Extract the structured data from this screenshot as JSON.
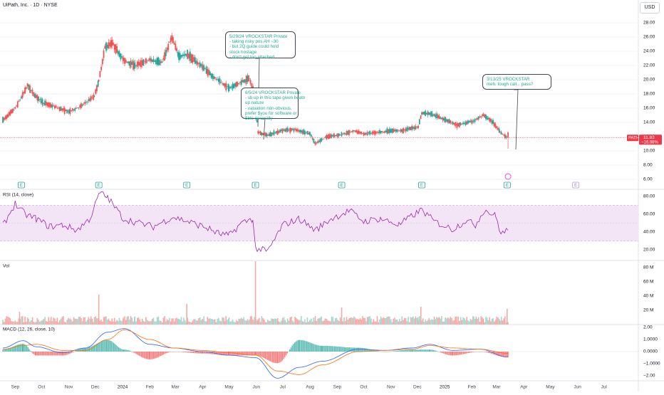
{
  "header": {
    "symbol_title": "UiPath, Inc. · 1D · NYSE",
    "currency": "USD"
  },
  "colors": {
    "up": "#26a69a",
    "down": "#ef5350",
    "rsi_line": "#9c27b0",
    "rsi_band": "#f3e5f5",
    "macd_line": "#2962ff",
    "signal_line": "#ff6d00",
    "last_price_bg": "#f23645",
    "callout_text": "#22ab94"
  },
  "price_label": {
    "symbol": "PATH",
    "price": "11.83",
    "change": "−16.98%"
  },
  "callouts": [
    {
      "id": "c1",
      "lines": [
        "5/29/24 VROCKSTAR Private",
        "- taking risky pos AH ~30",
        "- but 2Q guide could hold",
        "stock hostage",
        "- don't get too attached"
      ]
    },
    {
      "id": "c2",
      "lines": [
        "6/5/24 VROCKSTAR Private",
        "- sb up in this tape given beatn",
        "up nature",
        "- valuation non-obvious,",
        "prefer $you for software or",
        "$btc generally"
      ]
    },
    {
      "id": "c3",
      "lines": [
        "3/13/25 VROCKSTAR",
        "meh. tough call... pass?"
      ]
    }
  ],
  "earnings_markers": [
    "E",
    "E",
    "E",
    "E",
    "E",
    "E",
    "E",
    "E"
  ],
  "chart_data": [
    {
      "type": "candlestick",
      "title": "UiPath, Inc. · 1D · NYSE",
      "ylabel": "USD",
      "y_ticks": [
        "28.00",
        "26.00",
        "24.00",
        "22.00",
        "20.00",
        "18.00",
        "16.00",
        "14.00",
        "12.00",
        "10.00",
        "8.00",
        "6.00"
      ],
      "ylim": [
        5.2,
        29.5
      ],
      "x_ticks": [
        "Sep",
        "Oct",
        "Nov",
        "Dec",
        "2024",
        "Feb",
        "Mar",
        "Apr",
        "May",
        "Jun",
        "Jul",
        "Aug",
        "Sep",
        "Oct",
        "Nov",
        "Dec",
        "2025",
        "Feb",
        "Mar",
        "Apr",
        "May",
        "Jun",
        "Jul"
      ],
      "x_tick_dates": [
        "2023-09-01",
        "2023-10-01",
        "2023-11-01",
        "2023-12-01",
        "2024-01-01",
        "2024-02-01",
        "2024-03-01",
        "2024-04-01",
        "2024-05-01",
        "2024-06-01",
        "2024-07-01",
        "2024-08-01",
        "2024-09-01",
        "2024-10-01",
        "2024-11-01",
        "2024-12-01",
        "2025-01-01",
        "2025-02-01",
        "2025-03-01",
        "2025-04-01",
        "2025-05-01",
        "2025-06-01",
        "2025-07-01"
      ],
      "series": [
        {
          "name": "PATH",
          "x": [
            "2023-08-18",
            "2023-09-01",
            "2023-09-08",
            "2023-09-15",
            "2023-09-22",
            "2023-10-02",
            "2023-10-16",
            "2023-11-01",
            "2023-11-15",
            "2023-11-30",
            "2023-12-05",
            "2023-12-12",
            "2023-12-20",
            "2024-01-02",
            "2024-01-15",
            "2024-02-01",
            "2024-02-15",
            "2024-02-26",
            "2024-03-05",
            "2024-03-15",
            "2024-04-01",
            "2024-04-15",
            "2024-05-01",
            "2024-05-15",
            "2024-05-24",
            "2024-05-30",
            "2024-06-03",
            "2024-06-14",
            "2024-07-01",
            "2024-07-15",
            "2024-08-01",
            "2024-08-07",
            "2024-08-20",
            "2024-09-06",
            "2024-09-20",
            "2024-10-01",
            "2024-10-15",
            "2024-11-01",
            "2024-11-15",
            "2024-12-02",
            "2024-12-06",
            "2024-12-16",
            "2025-01-02",
            "2025-01-15",
            "2025-02-03",
            "2025-02-14",
            "2025-02-25",
            "2025-03-05",
            "2025-03-13"
          ],
          "values": [
            14.3,
            16.0,
            17.5,
            19.2,
            18.0,
            16.8,
            16.2,
            15.5,
            16.3,
            17.7,
            19.8,
            24.5,
            25.2,
            22.8,
            22.0,
            22.8,
            22.4,
            26.0,
            23.3,
            23.5,
            21.8,
            20.2,
            18.8,
            19.7,
            20.2,
            18.0,
            12.6,
            12.2,
            12.9,
            13.0,
            12.4,
            11.0,
            12.0,
            12.3,
            12.8,
            12.4,
            12.6,
            12.8,
            12.9,
            13.4,
            15.3,
            15.2,
            14.4,
            13.6,
            14.2,
            15.0,
            14.0,
            12.7,
            11.83
          ]
        }
      ]
    },
    {
      "type": "line",
      "title": "RSI (14, close)",
      "y_ticks": [
        "80.00",
        "60.00",
        "40.00",
        "20.00"
      ],
      "ylim": [
        13,
        86
      ],
      "band": [
        30,
        70
      ],
      "series": [
        {
          "name": "RSI",
          "x": [
            "2023-08-18",
            "2023-09-01",
            "2023-09-12",
            "2023-09-25",
            "2023-10-10",
            "2023-10-25",
            "2023-11-10",
            "2023-11-25",
            "2023-12-06",
            "2023-12-15",
            "2024-01-02",
            "2024-01-20",
            "2024-02-05",
            "2024-02-27",
            "2024-03-15",
            "2024-04-05",
            "2024-04-20",
            "2024-05-01",
            "2024-05-15",
            "2024-05-28",
            "2024-05-31",
            "2024-06-14",
            "2024-07-01",
            "2024-07-20",
            "2024-08-07",
            "2024-08-25",
            "2024-09-15",
            "2024-10-01",
            "2024-10-20",
            "2024-11-10",
            "2024-11-28",
            "2024-12-06",
            "2024-12-20",
            "2025-01-10",
            "2025-01-25",
            "2025-02-05",
            "2025-02-15",
            "2025-02-28",
            "2025-03-06",
            "2025-03-14"
          ],
          "values": [
            47,
            72,
            60,
            55,
            46,
            48,
            42,
            55,
            84,
            79,
            55,
            50,
            46,
            57,
            52,
            45,
            38,
            36,
            50,
            55,
            22,
            18,
            48,
            55,
            42,
            55,
            64,
            52,
            55,
            48,
            60,
            65,
            52,
            43,
            53,
            48,
            65,
            58,
            38,
            42
          ]
        }
      ]
    },
    {
      "type": "bar",
      "title": "Vol",
      "y_ticks": [
        "80 M",
        "60 M",
        "40 M",
        "20 M"
      ],
      "ylim": [
        0,
        90
      ],
      "spikes": {
        "x": [
          "2023-09-06",
          "2023-12-05",
          "2024-03-14",
          "2024-05-31",
          "2024-09-06",
          "2024-12-05",
          "2025-03-13"
        ],
        "values": [
          18,
          42,
          29,
          89,
          24,
          25,
          22
        ]
      }
    },
    {
      "type": "line",
      "title": "MACD (12, 26, close, 10)",
      "y_ticks": [
        "2.00",
        "1.0000",
        "0.0000",
        "−1.0000",
        "−2.00"
      ],
      "ylim": [
        -2.4,
        2.2
      ],
      "series": [
        {
          "name": "MACD",
          "x": [
            "2023-08-18",
            "2023-09-10",
            "2023-09-25",
            "2023-10-25",
            "2023-11-20",
            "2023-12-15",
            "2024-01-03",
            "2024-02-01",
            "2024-02-28",
            "2024-04-01",
            "2024-05-01",
            "2024-05-31",
            "2024-06-25",
            "2024-07-20",
            "2024-08-15",
            "2024-09-25",
            "2024-10-25",
            "2024-11-25",
            "2024-12-15",
            "2025-01-10",
            "2025-02-10",
            "2025-03-14"
          ],
          "values": [
            0.3,
            0.9,
            0.4,
            -0.1,
            0.3,
            1.6,
            1.9,
            0.6,
            0.3,
            0.0,
            -0.3,
            -0.5,
            -2.2,
            -1.3,
            -0.8,
            0.2,
            0.1,
            0.3,
            0.6,
            0.1,
            0.2,
            -0.45
          ]
        },
        {
          "name": "Signal",
          "x": [
            "2023-08-18",
            "2023-09-10",
            "2023-09-25",
            "2023-10-25",
            "2023-11-20",
            "2023-12-15",
            "2024-01-03",
            "2024-02-01",
            "2024-02-28",
            "2024-04-01",
            "2024-05-01",
            "2024-05-31",
            "2024-06-25",
            "2024-07-20",
            "2024-08-15",
            "2024-09-25",
            "2024-10-25",
            "2024-11-25",
            "2024-12-15",
            "2025-01-10",
            "2025-02-10",
            "2025-03-14"
          ],
          "values": [
            0.2,
            0.5,
            0.6,
            0.1,
            0.1,
            1.0,
            1.8,
            1.0,
            0.3,
            0.1,
            -0.1,
            -0.3,
            -1.6,
            -1.9,
            -1.1,
            0.0,
            0.1,
            0.2,
            0.5,
            0.3,
            0.2,
            -0.15
          ]
        }
      ]
    }
  ]
}
